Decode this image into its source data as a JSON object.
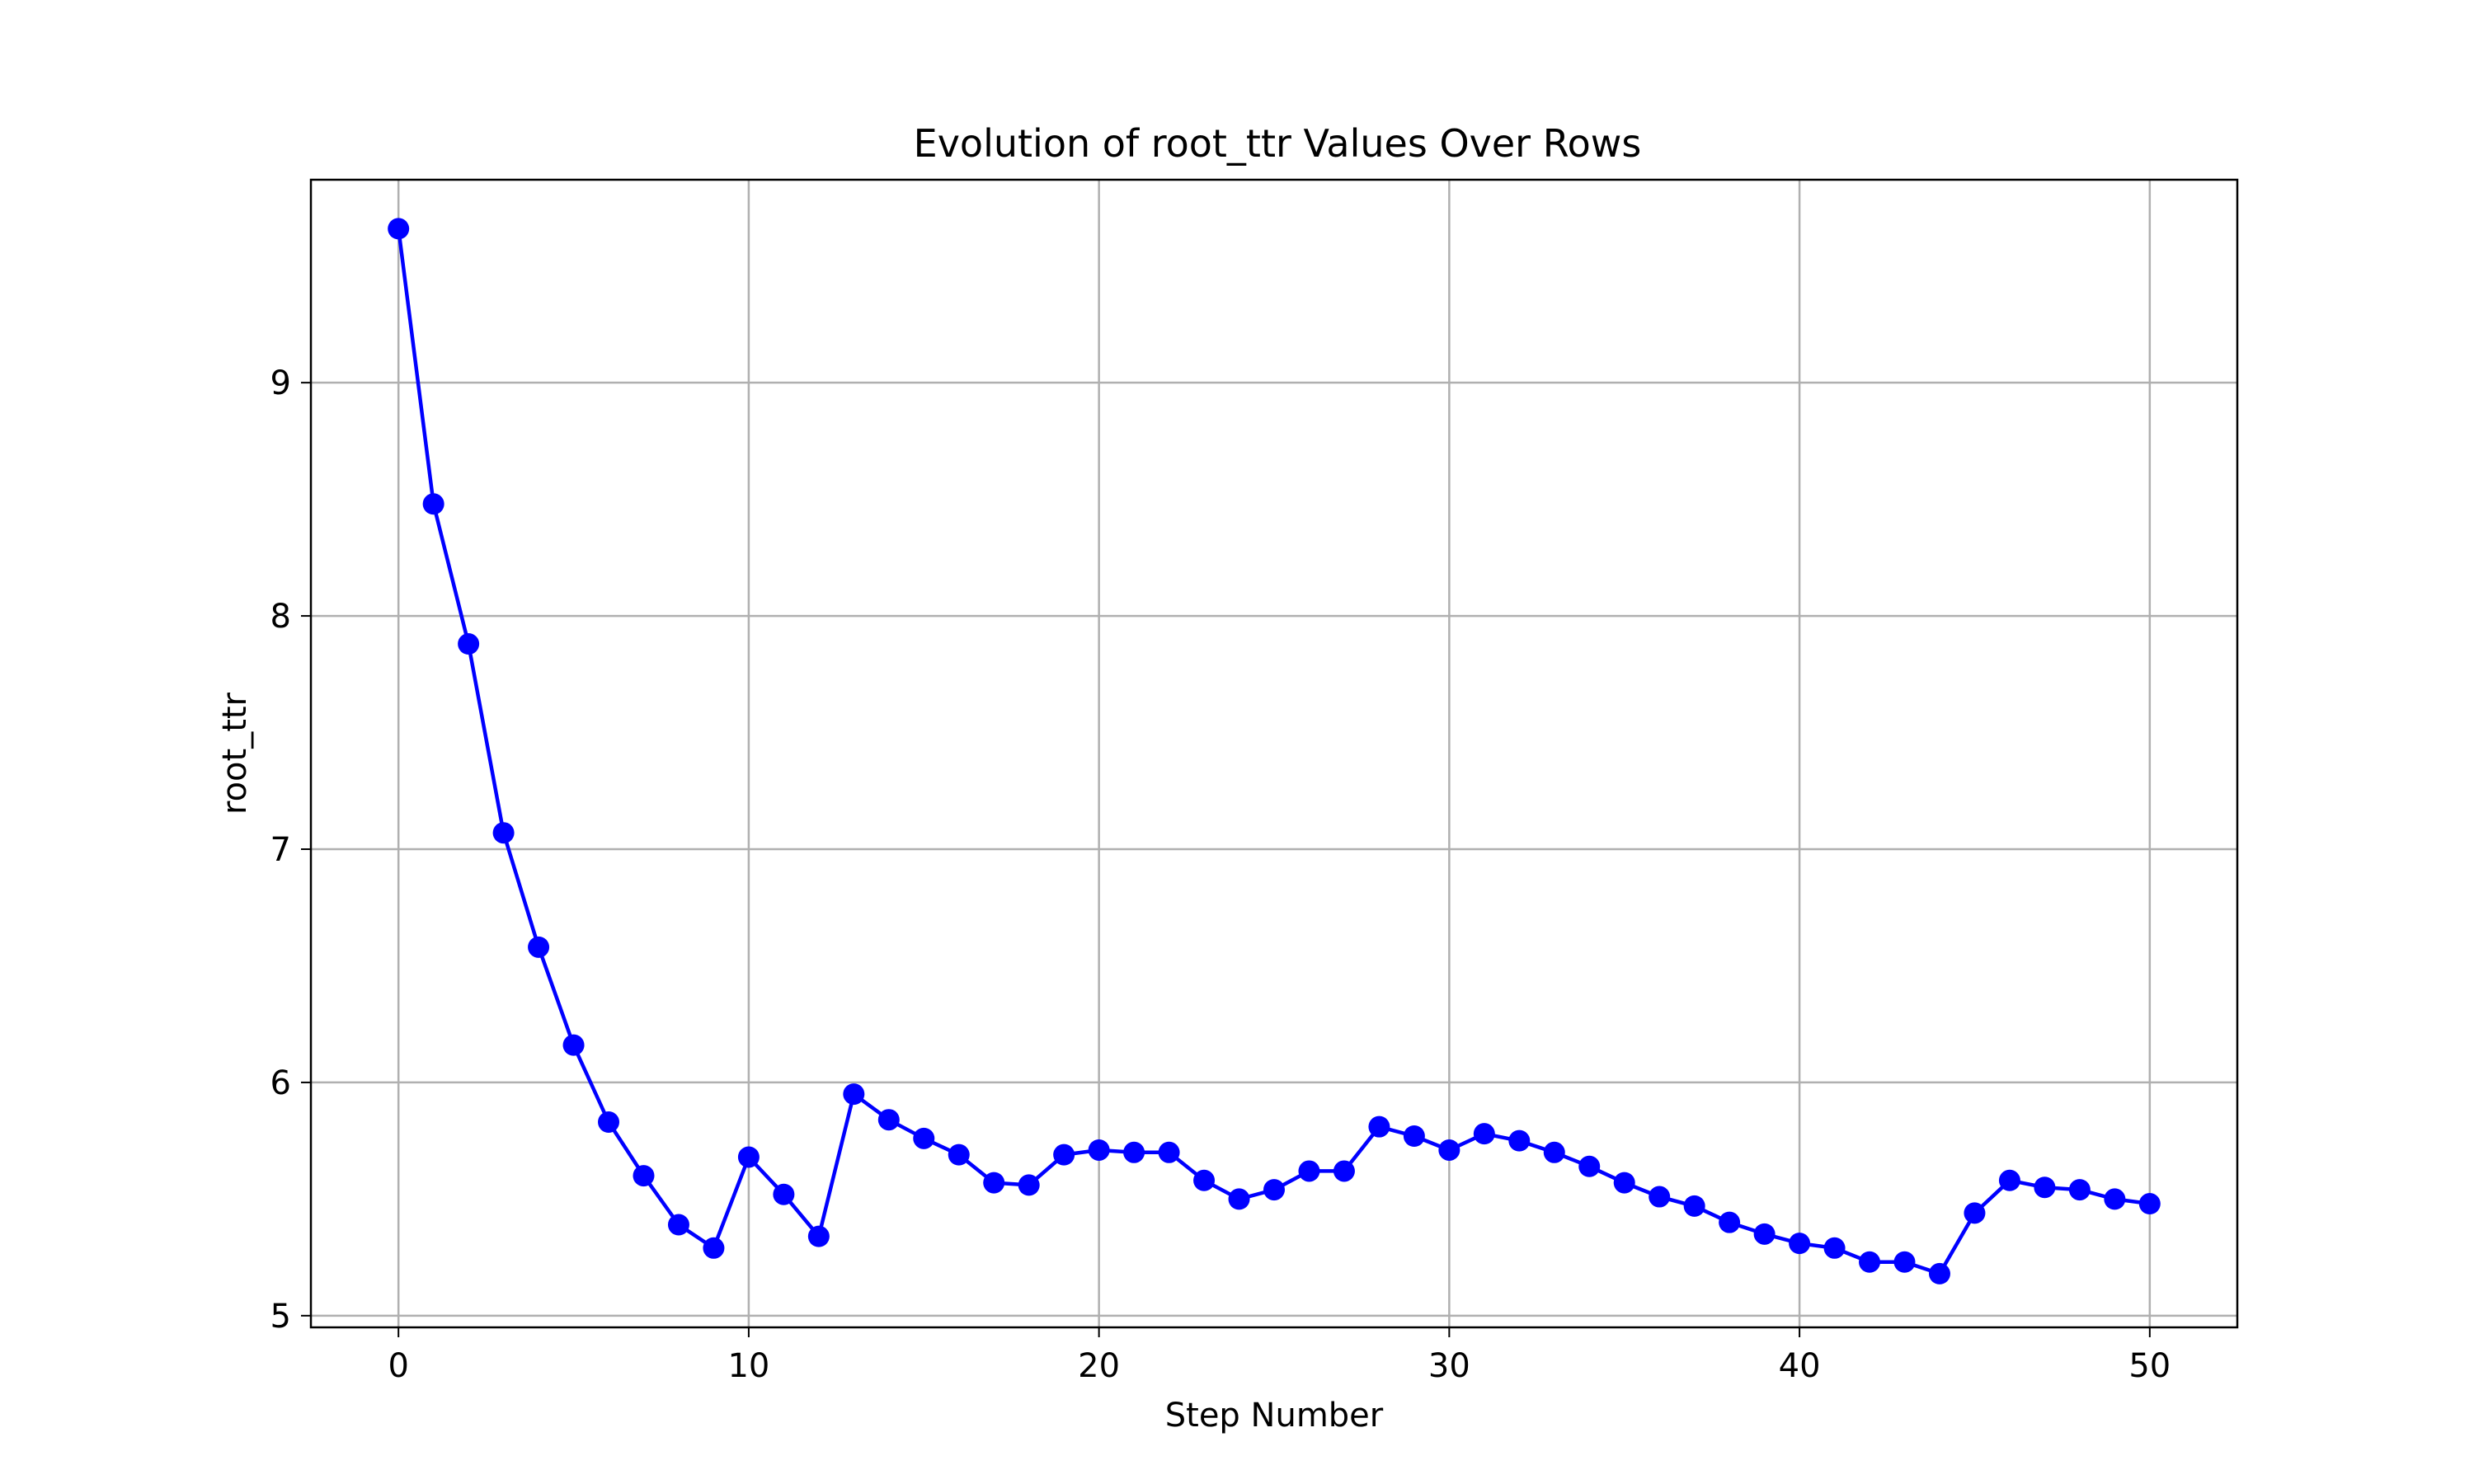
{
  "chart_data": {
    "type": "line",
    "title": "Evolution of root_ttr Values Over Rows",
    "xlabel": "Step Number",
    "ylabel": "root_ttr",
    "xlim": [
      -2.5,
      52.5
    ],
    "ylim": [
      4.95,
      9.87
    ],
    "xticks": [
      0,
      10,
      20,
      30,
      40,
      50
    ],
    "yticks": [
      5,
      6,
      7,
      8,
      9
    ],
    "grid": true,
    "legend": "none",
    "series": [
      {
        "color": "#0000ff",
        "marker": "circle",
        "x": [
          0,
          1,
          2,
          3,
          4,
          5,
          6,
          7,
          8,
          9,
          10,
          11,
          12,
          13,
          14,
          15,
          16,
          17,
          18,
          19,
          20,
          21,
          22,
          23,
          24,
          25,
          26,
          27,
          28,
          29,
          30,
          31,
          32,
          33,
          34,
          35,
          36,
          37,
          38,
          39,
          40,
          41,
          42,
          43,
          44,
          45,
          46,
          47,
          48,
          49,
          50
        ],
        "values": [
          9.66,
          8.48,
          7.88,
          7.07,
          6.58,
          6.16,
          5.83,
          5.6,
          5.39,
          5.29,
          5.68,
          5.52,
          5.34,
          5.95,
          5.84,
          5.76,
          5.69,
          5.57,
          5.56,
          5.69,
          5.71,
          5.7,
          5.7,
          5.58,
          5.5,
          5.54,
          5.62,
          5.62,
          5.81,
          5.77,
          5.71,
          5.78,
          5.75,
          5.7,
          5.64,
          5.57,
          5.51,
          5.47,
          5.4,
          5.35,
          5.31,
          5.29,
          5.23,
          5.23,
          5.18,
          5.44,
          5.58,
          5.55,
          5.54,
          5.5,
          5.48
        ]
      }
    ]
  }
}
